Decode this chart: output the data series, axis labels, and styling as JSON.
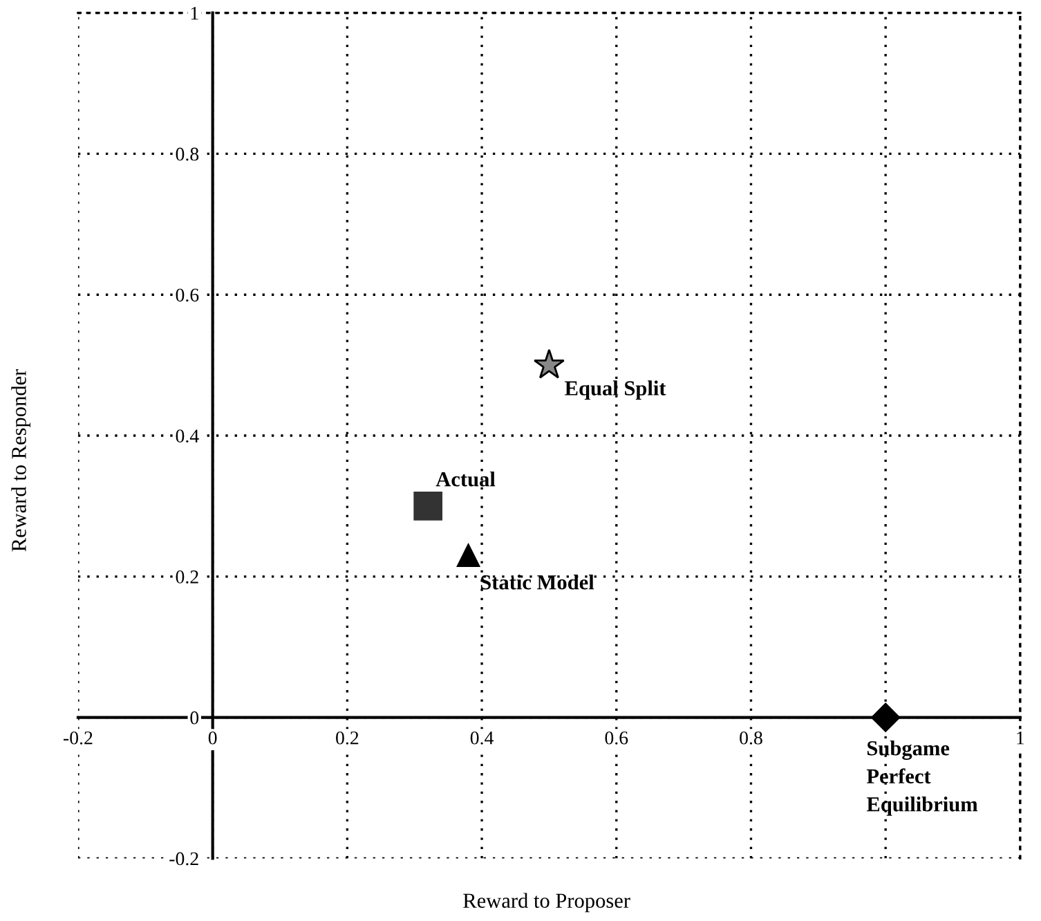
{
  "chart_data": {
    "type": "scatter",
    "xlabel": "Reward to Proposer",
    "ylabel": "Reward to Responder",
    "xlim": [
      -0.2,
      1.2
    ],
    "ylim": [
      -0.2,
      1
    ],
    "xticks": [
      -0.2,
      0,
      0.2,
      0.4,
      0.6,
      0.8,
      {
        "value": 1.0,
        "label": null
      },
      {
        "value": 1.2,
        "label": "1"
      }
    ],
    "yticks": [
      -0.2,
      0,
      0.2,
      0.4,
      0.6,
      0.8,
      1
    ],
    "grid": true,
    "series": [
      {
        "name": "Equal Split",
        "x": [
          0.5
        ],
        "values": [
          0.5
        ],
        "color": "#888888",
        "marker": "star"
      },
      {
        "name": "Actual",
        "x": [
          0.32
        ],
        "values": [
          0.3
        ],
        "color": "#333333",
        "marker": "square"
      },
      {
        "name": "Static Model",
        "x": [
          0.38
        ],
        "values": [
          0.23
        ],
        "color": "#000000",
        "marker": "triangle"
      },
      {
        "name": "Subgame\nPerfect\nEquilibrium",
        "x": [
          1.0
        ],
        "values": [
          0.0
        ],
        "color": "#000000",
        "marker": "diamond"
      }
    ]
  }
}
